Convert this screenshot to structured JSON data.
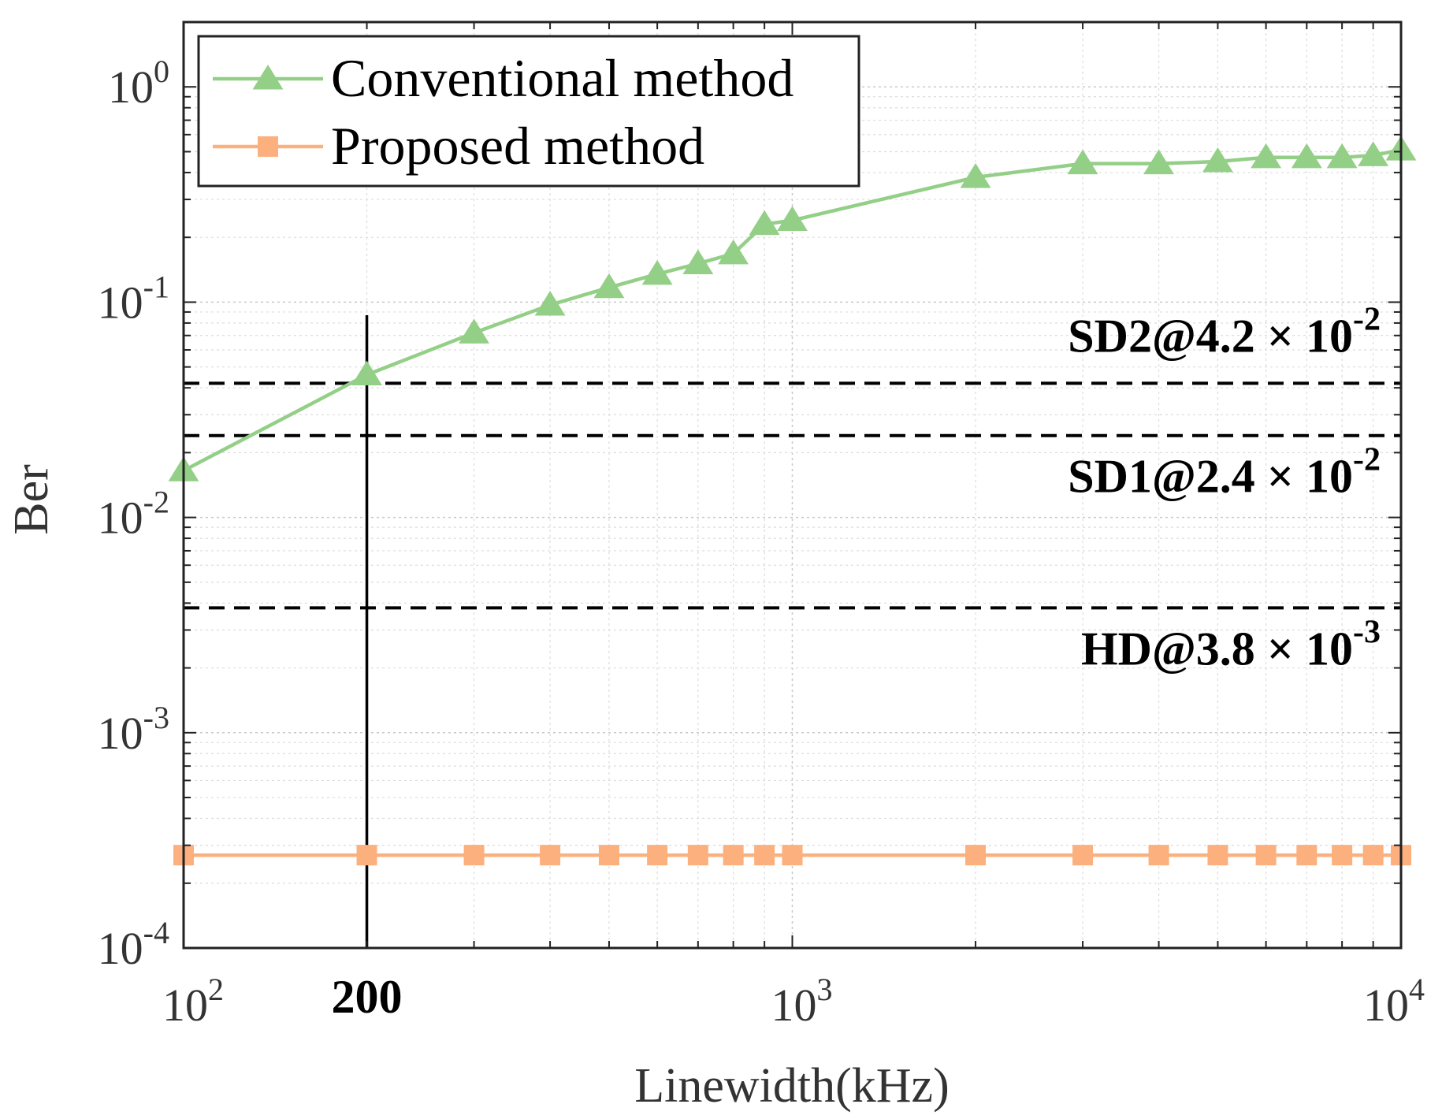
{
  "chart_data": {
    "type": "line",
    "xlabel": "Linewidth(kHz)",
    "ylabel": "Ber",
    "x_scale": "log",
    "y_scale": "log",
    "xlim": [
      100,
      10000
    ],
    "ylim": [
      0.0001,
      2
    ],
    "grid": true,
    "legend_position": "top-left",
    "x_ticks": [
      {
        "value": 100,
        "base": "10",
        "exp": "2"
      },
      {
        "value": 1000,
        "base": "10",
        "exp": "3"
      },
      {
        "value": 10000,
        "base": "10",
        "exp": "4"
      }
    ],
    "x_highlight_tick": {
      "value": 200,
      "label": "200"
    },
    "y_ticks": [
      {
        "value": 1,
        "base": "10",
        "exp": "0"
      },
      {
        "value": 0.1,
        "base": "10",
        "exp": "-1"
      },
      {
        "value": 0.01,
        "base": "10",
        "exp": "-2"
      },
      {
        "value": 0.001,
        "base": "10",
        "exp": "-3"
      },
      {
        "value": 0.0001,
        "base": "10",
        "exp": "-4"
      }
    ],
    "series": [
      {
        "name": "Conventional method",
        "color": "#93cf86",
        "marker": "triangle",
        "x": [
          100,
          200,
          300,
          400,
          500,
          600,
          700,
          800,
          900,
          1000,
          2000,
          3000,
          4000,
          5000,
          6000,
          7000,
          8000,
          9000,
          10000
        ],
        "y": [
          0.0165,
          0.046,
          0.072,
          0.097,
          0.117,
          0.135,
          0.151,
          0.168,
          0.23,
          0.24,
          0.38,
          0.44,
          0.44,
          0.45,
          0.47,
          0.47,
          0.47,
          0.48,
          0.51
        ]
      },
      {
        "name": "Proposed method",
        "color": "#fcb07e",
        "marker": "square",
        "x": [
          100,
          200,
          300,
          400,
          500,
          600,
          700,
          800,
          900,
          1000,
          2000,
          3000,
          4000,
          5000,
          6000,
          7000,
          8000,
          9000,
          10000
        ],
        "y": [
          0.00027,
          0.00027,
          0.00027,
          0.00027,
          0.00027,
          0.00027,
          0.00027,
          0.00027,
          0.00027,
          0.00027,
          0.00027,
          0.00027,
          0.00027,
          0.00027,
          0.00027,
          0.00027,
          0.00027,
          0.00027,
          0.00027
        ]
      }
    ],
    "thresholds": [
      {
        "value": 0.042,
        "label_main": "SD2@4.2 × 10",
        "label_exp": "-2"
      },
      {
        "value": 0.024,
        "label_main": "SD1@2.4 × 10",
        "label_exp": "-2"
      },
      {
        "value": 0.0038,
        "label_main": "HD@3.8 × 10",
        "label_exp": "-3"
      }
    ],
    "vertical_marker": {
      "x": 200,
      "y_top": 0.087
    }
  }
}
